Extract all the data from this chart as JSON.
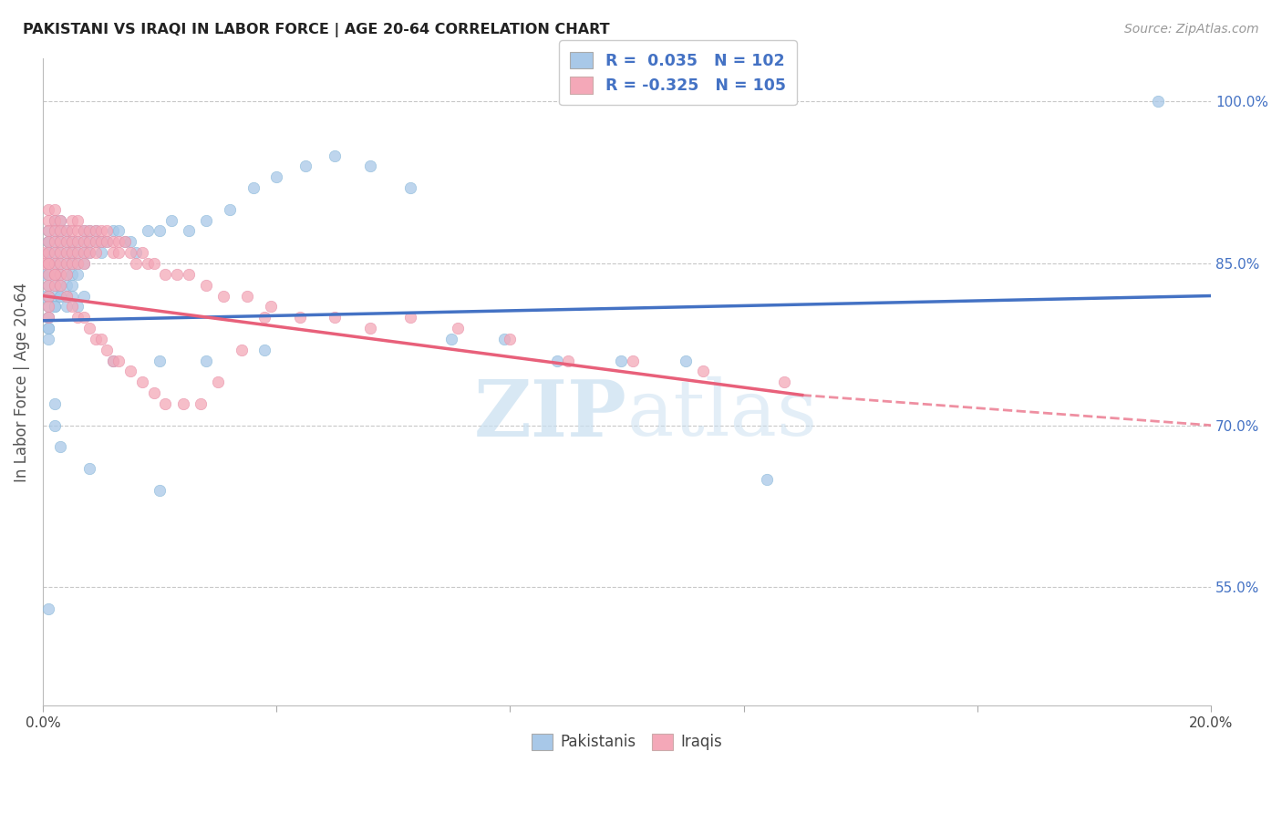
{
  "title": "PAKISTANI VS IRAQI IN LABOR FORCE | AGE 20-64 CORRELATION CHART",
  "source": "Source: ZipAtlas.com",
  "ylabel": "In Labor Force | Age 20-64",
  "xlim": [
    0.0,
    0.2
  ],
  "ylim": [
    0.44,
    1.04
  ],
  "ytick_labels_right": [
    "55.0%",
    "70.0%",
    "85.0%",
    "100.0%"
  ],
  "ytick_vals_right": [
    0.55,
    0.7,
    0.85,
    1.0
  ],
  "blue_R": 0.035,
  "blue_N": 102,
  "pink_R": -0.325,
  "pink_N": 105,
  "blue_color": "#A8C8E8",
  "pink_color": "#F4A8B8",
  "blue_line_color": "#4472C4",
  "pink_line_color": "#E8607A",
  "right_label_color": "#4472C4",
  "background_color": "#FFFFFF",
  "grid_color": "#C8C8C8",
  "title_color": "#222222",
  "blue_line": [
    0.0,
    0.797,
    0.2,
    0.82
  ],
  "pink_line_solid": [
    0.0,
    0.82,
    0.13,
    0.728
  ],
  "pink_line_dash": [
    0.13,
    0.728,
    0.2,
    0.7
  ],
  "pak_x": [
    0.0,
    0.0,
    0.001,
    0.001,
    0.001,
    0.001,
    0.001,
    0.001,
    0.001,
    0.001,
    0.001,
    0.001,
    0.001,
    0.001,
    0.002,
    0.002,
    0.002,
    0.002,
    0.002,
    0.002,
    0.002,
    0.002,
    0.002,
    0.003,
    0.003,
    0.003,
    0.003,
    0.003,
    0.003,
    0.003,
    0.003,
    0.004,
    0.004,
    0.004,
    0.004,
    0.004,
    0.004,
    0.004,
    0.005,
    0.005,
    0.005,
    0.005,
    0.005,
    0.006,
    0.006,
    0.006,
    0.006,
    0.007,
    0.007,
    0.007,
    0.007,
    0.008,
    0.008,
    0.008,
    0.009,
    0.009,
    0.01,
    0.01,
    0.011,
    0.012,
    0.013,
    0.014,
    0.015,
    0.016,
    0.018,
    0.02,
    0.022,
    0.025,
    0.028,
    0.032,
    0.036,
    0.04,
    0.045,
    0.05,
    0.056,
    0.063,
    0.07,
    0.079,
    0.088,
    0.099,
    0.11,
    0.124,
    0.012,
    0.02,
    0.028,
    0.038,
    0.02,
    0.008,
    0.003,
    0.002,
    0.002,
    0.001,
    0.001,
    0.001,
    0.002,
    0.003,
    0.004,
    0.005,
    0.006,
    0.007,
    0.191,
    0.001
  ],
  "pak_y": [
    0.84,
    0.82,
    0.87,
    0.86,
    0.88,
    0.87,
    0.86,
    0.85,
    0.84,
    0.83,
    0.82,
    0.81,
    0.8,
    0.79,
    0.89,
    0.88,
    0.87,
    0.86,
    0.85,
    0.84,
    0.83,
    0.82,
    0.81,
    0.89,
    0.88,
    0.87,
    0.86,
    0.85,
    0.84,
    0.83,
    0.82,
    0.88,
    0.87,
    0.86,
    0.85,
    0.84,
    0.83,
    0.82,
    0.87,
    0.86,
    0.85,
    0.84,
    0.83,
    0.87,
    0.86,
    0.85,
    0.84,
    0.88,
    0.87,
    0.86,
    0.85,
    0.88,
    0.87,
    0.86,
    0.88,
    0.87,
    0.87,
    0.86,
    0.87,
    0.88,
    0.88,
    0.87,
    0.87,
    0.86,
    0.88,
    0.88,
    0.89,
    0.88,
    0.89,
    0.9,
    0.92,
    0.93,
    0.94,
    0.95,
    0.94,
    0.92,
    0.78,
    0.78,
    0.76,
    0.76,
    0.76,
    0.65,
    0.76,
    0.76,
    0.76,
    0.77,
    0.64,
    0.66,
    0.68,
    0.72,
    0.7,
    0.79,
    0.78,
    0.82,
    0.81,
    0.82,
    0.81,
    0.82,
    0.81,
    0.82,
    1.0,
    0.53
  ],
  "irq_x": [
    0.0,
    0.0,
    0.001,
    0.001,
    0.001,
    0.001,
    0.001,
    0.001,
    0.001,
    0.001,
    0.001,
    0.001,
    0.001,
    0.002,
    0.002,
    0.002,
    0.002,
    0.002,
    0.002,
    0.002,
    0.002,
    0.003,
    0.003,
    0.003,
    0.003,
    0.003,
    0.003,
    0.004,
    0.004,
    0.004,
    0.004,
    0.004,
    0.005,
    0.005,
    0.005,
    0.005,
    0.005,
    0.006,
    0.006,
    0.006,
    0.006,
    0.006,
    0.007,
    0.007,
    0.007,
    0.007,
    0.008,
    0.008,
    0.008,
    0.009,
    0.009,
    0.009,
    0.01,
    0.01,
    0.011,
    0.011,
    0.012,
    0.012,
    0.013,
    0.013,
    0.014,
    0.015,
    0.016,
    0.017,
    0.018,
    0.019,
    0.021,
    0.023,
    0.025,
    0.028,
    0.031,
    0.035,
    0.039,
    0.044,
    0.05,
    0.056,
    0.063,
    0.071,
    0.08,
    0.09,
    0.101,
    0.113,
    0.127,
    0.001,
    0.002,
    0.003,
    0.004,
    0.005,
    0.006,
    0.007,
    0.008,
    0.009,
    0.01,
    0.011,
    0.012,
    0.013,
    0.015,
    0.017,
    0.019,
    0.021,
    0.024,
    0.027,
    0.03,
    0.034,
    0.038
  ],
  "irq_y": [
    0.86,
    0.85,
    0.9,
    0.89,
    0.88,
    0.87,
    0.86,
    0.85,
    0.84,
    0.83,
    0.82,
    0.81,
    0.8,
    0.9,
    0.89,
    0.88,
    0.87,
    0.86,
    0.85,
    0.84,
    0.83,
    0.89,
    0.88,
    0.87,
    0.86,
    0.85,
    0.84,
    0.88,
    0.87,
    0.86,
    0.85,
    0.84,
    0.89,
    0.88,
    0.87,
    0.86,
    0.85,
    0.89,
    0.88,
    0.87,
    0.86,
    0.85,
    0.88,
    0.87,
    0.86,
    0.85,
    0.88,
    0.87,
    0.86,
    0.88,
    0.87,
    0.86,
    0.88,
    0.87,
    0.88,
    0.87,
    0.87,
    0.86,
    0.87,
    0.86,
    0.87,
    0.86,
    0.85,
    0.86,
    0.85,
    0.85,
    0.84,
    0.84,
    0.84,
    0.83,
    0.82,
    0.82,
    0.81,
    0.8,
    0.8,
    0.79,
    0.8,
    0.79,
    0.78,
    0.76,
    0.76,
    0.75,
    0.74,
    0.85,
    0.84,
    0.83,
    0.82,
    0.81,
    0.8,
    0.8,
    0.79,
    0.78,
    0.78,
    0.77,
    0.76,
    0.76,
    0.75,
    0.74,
    0.73,
    0.72,
    0.72,
    0.72,
    0.74,
    0.77,
    0.8
  ]
}
